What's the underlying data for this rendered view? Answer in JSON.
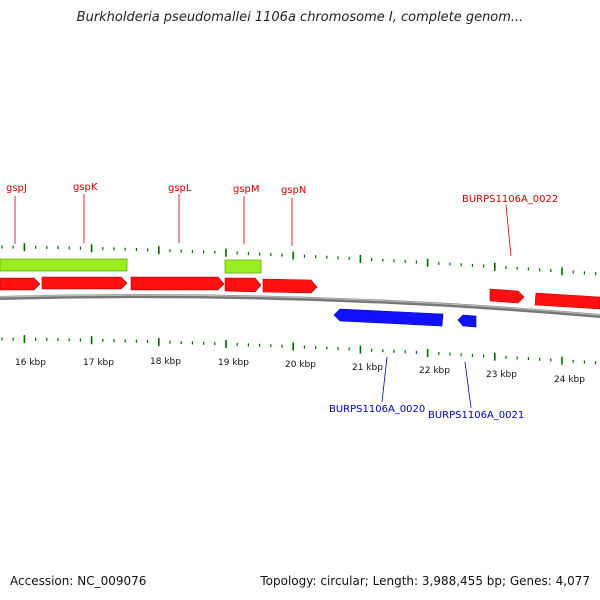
{
  "title": "Burkholderia pseudomallei 1106a chromosome I, complete genom...",
  "footer": {
    "accession": "Accession: NC_009076",
    "summary": "Topology: circular; Length: 3,988,455 bp; Genes: 4,077"
  },
  "colors": {
    "forward_gene": "#ff0000",
    "reverse_gene": "#0000ff",
    "green_feature": "#99ee22",
    "ticks": "#006600",
    "backbone": "#888888"
  },
  "kbp_labels": [
    "16 kbp",
    "17 kbp",
    "18 kbp",
    "19 kbp",
    "20 kbp",
    "21 kbp",
    "22 kbp",
    "23 kbp",
    "24 kbp"
  ],
  "top_gene_labels": [
    "gspJ",
    "gspK",
    "gspL",
    "gspM",
    "gspN",
    "BURPS1106A_0022"
  ],
  "bottom_gene_labels": [
    "BURPS1106A_0020",
    "BURPS1106A_0021"
  ]
}
